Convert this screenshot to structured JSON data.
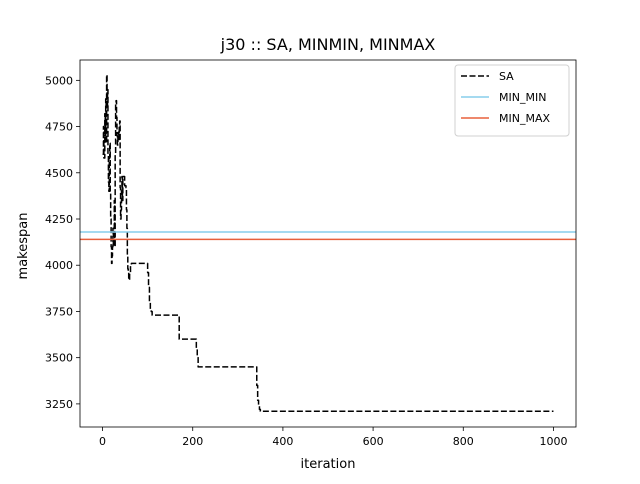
{
  "chart_data": {
    "type": "line",
    "title": "j30 :: SA, MINMIN, MINMAX",
    "xlabel": "iteration",
    "ylabel": "makespan",
    "xlim": [
      -50,
      1050
    ],
    "ylim": [
      3125,
      5110
    ],
    "xticks": [
      0,
      200,
      400,
      600,
      800,
      1000
    ],
    "yticks": [
      3250,
      3500,
      3750,
      4000,
      4250,
      4500,
      4750,
      5000
    ],
    "grid": false,
    "legend_position": "top-right",
    "series": [
      {
        "name": "SA",
        "style": "dashed",
        "color": "#000000",
        "x": [
          0,
          2,
          3,
          5,
          6,
          7,
          8,
          9,
          10,
          11,
          12,
          13,
          14,
          15,
          16,
          17,
          18,
          19,
          20,
          21,
          22,
          23,
          24,
          25,
          26,
          27,
          28,
          29,
          30,
          31,
          32,
          33,
          34,
          35,
          36,
          37,
          38,
          39,
          40,
          41,
          42,
          43,
          44,
          45,
          47,
          49,
          51,
          52,
          53,
          54,
          55,
          56,
          57,
          58,
          59,
          60,
          62,
          64,
          66,
          68,
          70,
          75,
          80,
          85,
          90,
          95,
          100,
          102,
          104,
          106,
          108,
          110,
          120,
          140,
          160,
          170,
          172,
          180,
          190,
          200,
          205,
          208,
          210,
          212,
          215,
          230,
          260,
          290,
          320,
          340,
          342,
          344,
          346,
          348,
          350,
          355,
          400,
          500,
          600,
          700,
          800,
          900,
          1000
        ],
        "y": [
          4600,
          4750,
          4580,
          4820,
          4700,
          4900,
          4660,
          5030,
          4850,
          4950,
          4600,
          4450,
          4400,
          4580,
          4660,
          4400,
          4250,
          4100,
          4010,
          4050,
          4100,
          4200,
          4100,
          4150,
          4350,
          4100,
          4600,
          4870,
          4890,
          4800,
          4700,
          4650,
          4700,
          4720,
          4680,
          4750,
          4780,
          4420,
          4250,
          4300,
          4400,
          4480,
          4350,
          4480,
          4480,
          4430,
          4430,
          4420,
          4300,
          4200,
          4050,
          3980,
          3970,
          3930,
          3920,
          3950,
          4000,
          4010,
          4010,
          4010,
          4010,
          4010,
          4010,
          4010,
          4010,
          4010,
          3960,
          3880,
          3800,
          3760,
          3750,
          3730,
          3730,
          3730,
          3730,
          3600,
          3600,
          3600,
          3600,
          3600,
          3600,
          3550,
          3500,
          3450,
          3450,
          3450,
          3450,
          3450,
          3450,
          3450,
          3350,
          3270,
          3240,
          3220,
          3210,
          3210,
          3210,
          3210,
          3210,
          3210,
          3210,
          3210,
          3210
        ]
      },
      {
        "name": "MIN_MIN",
        "style": "solid",
        "color": "#87ceeb",
        "value": 4180
      },
      {
        "name": "MIN_MAX",
        "style": "solid",
        "color": "#e8603c",
        "value": 4140
      }
    ]
  }
}
